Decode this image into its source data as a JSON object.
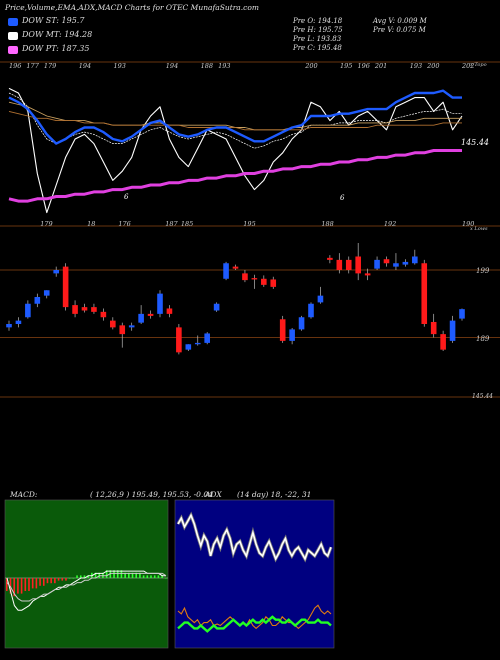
{
  "header": {
    "title": "Price,Volume,EMA,ADX,MACD Charts for OTEC MunafaSutra.com",
    "stats_left": [
      "Pre   O: 194.18",
      "Pre   H: 195.75",
      "Pre   L: 193.83",
      "Pre   C: 195.48"
    ],
    "stats_right": [
      "Avg V: 0.009 M",
      "Pre   V: 0.075 M"
    ]
  },
  "legend": [
    {
      "label": "DOW ST: 195.7",
      "color": "#1e5bff"
    },
    {
      "label": "DOW MT: 194.28",
      "color": "#ffffff"
    },
    {
      "label": "DOW PT: 187.35",
      "color": "#ff66ff"
    }
  ],
  "colors": {
    "up": "#1e5bff",
    "down": "#ff1a1a",
    "st": "#1e5bff",
    "mt": "#ffffff",
    "pt": "#e040e0",
    "grid": "#8b4513",
    "macd_bg": "#0a5a0a",
    "adx_bg": "#000080"
  },
  "chart_data": [
    {
      "type": "line",
      "panel": "price-ema",
      "corner_label": "x Topo",
      "right_value": "145.44",
      "top_labels": [
        "196",
        "177",
        "179",
        "",
        "194",
        "",
        "193",
        "",
        "",
        "194",
        "",
        "188",
        "193",
        "",
        "",
        "",
        "",
        "200",
        "",
        "195",
        "196",
        "201",
        "",
        "193",
        "200",
        "",
        "202"
      ],
      "bottom_labels": [
        "",
        "",
        "179",
        "",
        "",
        "18",
        "",
        "176",
        "",
        "",
        "187",
        "185",
        "",
        "",
        "",
        "195",
        "",
        "",
        "",
        "",
        "188",
        "",
        "",
        "",
        "192",
        "",
        "",
        "",
        "",
        "190"
      ],
      "annotations": [
        "6",
        "6"
      ],
      "series": [
        {
          "values": [
            8,
            10,
            18,
            45,
            62,
            50,
            38,
            30,
            28,
            32,
            40,
            48,
            44,
            38,
            26,
            20,
            16,
            30,
            38,
            42,
            34,
            26,
            28,
            30,
            38,
            46,
            52,
            48,
            40,
            36,
            30,
            26,
            14,
            16,
            22,
            18,
            24,
            20,
            18,
            22,
            26,
            16,
            14,
            12,
            12,
            18,
            14,
            26,
            20
          ]
        },
        {
          "values": [
            10,
            12,
            16,
            24,
            30,
            32,
            30,
            28,
            27,
            28,
            30,
            32,
            32,
            30,
            28,
            26,
            25,
            27,
            29,
            30,
            29,
            28,
            27,
            28,
            30,
            32,
            34,
            33,
            31,
            30,
            28,
            27,
            24,
            24,
            24,
            23,
            23,
            22,
            22,
            22,
            23,
            21,
            20,
            19,
            18,
            18,
            17,
            19,
            19
          ]
        },
        {
          "values": [
            14,
            15,
            16,
            18,
            20,
            21,
            22,
            22,
            22,
            23,
            23,
            24,
            24,
            24,
            24,
            23,
            23,
            24,
            24,
            24,
            24,
            24,
            24,
            24,
            25,
            25,
            26,
            26,
            26,
            26,
            25,
            25,
            24,
            24,
            24,
            24,
            24,
            23,
            23,
            23,
            23,
            22,
            22,
            22,
            21,
            21,
            21,
            21,
            21
          ]
        },
        {
          "values": [
            18,
            19,
            20,
            21,
            21,
            22,
            22,
            22,
            23,
            23,
            23,
            24,
            24,
            24,
            24,
            24,
            24,
            24,
            24,
            25,
            25,
            25,
            25,
            25,
            25,
            26,
            26,
            26,
            26,
            26,
            26,
            26,
            25,
            25,
            25,
            25,
            25,
            25,
            25,
            24,
            24,
            24,
            24,
            24,
            24,
            24,
            23,
            23,
            23
          ]
        },
        {
          "values": [
            56,
            57,
            57,
            56,
            56,
            55,
            55,
            54,
            54,
            53,
            53,
            52,
            52,
            51,
            51,
            50,
            50,
            49,
            49,
            48,
            48,
            47,
            47,
            46,
            46,
            45,
            45,
            44,
            44,
            43,
            43,
            42,
            42,
            41,
            41,
            40,
            40,
            39,
            39,
            38,
            38,
            37,
            37,
            36,
            36,
            35,
            35,
            35,
            35
          ]
        },
        {
          "name": "DOW ST",
          "values": [
            12,
            14,
            17,
            22,
            28,
            32,
            30,
            27,
            25,
            25,
            27,
            30,
            31,
            29,
            26,
            23,
            22,
            25,
            28,
            29,
            28,
            26,
            25,
            25,
            27,
            29,
            31,
            31,
            29,
            27,
            25,
            24,
            20,
            20,
            20,
            19,
            19,
            18,
            17,
            17,
            17,
            14,
            12,
            10,
            10,
            10,
            9,
            12,
            12
          ]
        }
      ]
    },
    {
      "type": "candlestick",
      "panel": "price",
      "corner_label": "x Lows",
      "price_labels": [
        "199",
        "189",
        "145.44"
      ],
      "candles": [
        {
          "o": 190.5,
          "h": 191.5,
          "c": 191,
          "l": 190
        },
        {
          "o": 191,
          "h": 192,
          "c": 191.5,
          "l": 190.5
        },
        {
          "o": 192,
          "h": 194.5,
          "c": 194,
          "l": 191.8
        },
        {
          "o": 194,
          "h": 195.5,
          "c": 195,
          "l": 193.5
        },
        {
          "o": 195.2,
          "h": 196,
          "c": 196,
          "l": 194.8
        },
        {
          "o": 198.5,
          "h": 199.5,
          "c": 199,
          "l": 198
        },
        {
          "o": 199.5,
          "h": 200,
          "c": 193.5,
          "l": 193
        },
        {
          "o": 193.8,
          "h": 194.5,
          "c": 192.5,
          "l": 192
        },
        {
          "o": 193.5,
          "h": 194,
          "c": 193,
          "l": 192.7
        },
        {
          "o": 193.5,
          "h": 194,
          "c": 192.8,
          "l": 192.5
        },
        {
          "o": 192.8,
          "h": 193.3,
          "c": 192,
          "l": 191.5
        },
        {
          "o": 191.5,
          "h": 192,
          "c": 190.5,
          "l": 190.2
        },
        {
          "o": 190.8,
          "h": 191.2,
          "c": 189.5,
          "l": 187.5
        },
        {
          "o": 190.5,
          "h": 191.2,
          "c": 190.8,
          "l": 190
        },
        {
          "o": 191.2,
          "h": 193.8,
          "c": 192.5,
          "l": 191
        },
        {
          "o": 192.5,
          "h": 193,
          "c": 192.2,
          "l": 191.8
        },
        {
          "o": 192.5,
          "h": 196,
          "c": 195.5,
          "l": 192
        },
        {
          "o": 193.3,
          "h": 193.8,
          "c": 192.5,
          "l": 192
        },
        {
          "o": 190.5,
          "h": 191,
          "c": 186.8,
          "l": 186.5
        },
        {
          "o": 187.2,
          "h": 188,
          "c": 188,
          "l": 187
        },
        {
          "o": 188,
          "h": 189.3,
          "c": 188.2,
          "l": 187.8
        },
        {
          "o": 188.2,
          "h": 189.8,
          "c": 189.6,
          "l": 188
        },
        {
          "o": 193,
          "h": 194.2,
          "c": 194,
          "l": 192.8
        },
        {
          "o": 197.7,
          "h": 200.2,
          "c": 200,
          "l": 197.5
        },
        {
          "o": 199.5,
          "h": 199.8,
          "c": 199.2,
          "l": 199
        },
        {
          "o": 198.5,
          "h": 199,
          "c": 197.5,
          "l": 197.2
        },
        {
          "o": 197.8,
          "h": 198.3,
          "c": 197.6,
          "l": 196.2
        },
        {
          "o": 197.7,
          "h": 198.2,
          "c": 196.8,
          "l": 196.5
        },
        {
          "o": 197.6,
          "h": 198,
          "c": 196.5,
          "l": 196.2
        },
        {
          "o": 191.7,
          "h": 192.2,
          "c": 188.5,
          "l": 188.2
        },
        {
          "o": 188.5,
          "h": 190.4,
          "c": 190.2,
          "l": 188
        },
        {
          "o": 190.2,
          "h": 192.2,
          "c": 192,
          "l": 190
        },
        {
          "o": 192,
          "h": 194.2,
          "c": 194,
          "l": 191.8
        },
        {
          "o": 194.2,
          "h": 196.5,
          "c": 195.2,
          "l": 194
        },
        {
          "o": 200.8,
          "h": 201.2,
          "c": 200.5,
          "l": 200
        },
        {
          "o": 200.5,
          "h": 201.5,
          "c": 199,
          "l": 198.5
        },
        {
          "o": 200.5,
          "h": 201,
          "c": 199,
          "l": 198.5
        },
        {
          "o": 201,
          "h": 203,
          "c": 198.5,
          "l": 197.5
        },
        {
          "o": 198.5,
          "h": 199.2,
          "c": 198.2,
          "l": 197.5
        },
        {
          "o": 199.2,
          "h": 201,
          "c": 200.5,
          "l": 199
        },
        {
          "o": 200.6,
          "h": 201,
          "c": 200,
          "l": 199.5
        },
        {
          "o": 199.5,
          "h": 201.5,
          "c": 200,
          "l": 199
        },
        {
          "o": 199.8,
          "h": 200.6,
          "c": 200.2,
          "l": 199.5
        },
        {
          "o": 200,
          "h": 202,
          "c": 201,
          "l": 199.8
        },
        {
          "o": 200,
          "h": 200.5,
          "c": 191,
          "l": 190.6
        },
        {
          "o": 191.3,
          "h": 192.5,
          "c": 189.5,
          "l": 189
        },
        {
          "o": 189.5,
          "h": 190,
          "c": 187.2,
          "l": 187
        },
        {
          "o": 188.5,
          "h": 192.2,
          "c": 191.5,
          "l": 188.2
        },
        {
          "o": 191.8,
          "h": 193.3,
          "c": 193.2,
          "l": 191.5
        }
      ]
    },
    {
      "type": "bar",
      "panel": "macd",
      "title": "MACD:",
      "params": "( 12,26,9 ) 195.49, 195.53, -0.04",
      "values": [
        -5,
        -6,
        -7,
        -6,
        -6,
        -5,
        -5,
        -4,
        -4,
        -3,
        -3,
        -2,
        -2,
        -2,
        -1,
        -1,
        -1,
        0,
        0,
        1,
        1,
        1,
        1,
        2,
        2,
        2,
        2,
        3,
        3,
        3,
        3,
        3,
        2,
        2,
        2,
        2,
        2,
        1,
        1,
        1,
        1,
        1,
        1,
        0
      ],
      "series": [
        {
          "values": [
            0,
            -6,
            -12,
            -14,
            -14,
            -13,
            -12,
            -10,
            -9,
            -8,
            -8,
            -7,
            -6,
            -5,
            -4,
            -4,
            -3,
            -3,
            -2,
            -1,
            0,
            0,
            1,
            1,
            2,
            2,
            2,
            3,
            3,
            3,
            3,
            3,
            3,
            3,
            3,
            3,
            3,
            3,
            2,
            2,
            2,
            2,
            1,
            1
          ]
        },
        {
          "values": [
            -2,
            -4,
            -7,
            -9,
            -10,
            -10,
            -10,
            -9,
            -9,
            -8,
            -7,
            -7,
            -6,
            -5,
            -5,
            -4,
            -4,
            -3,
            -3,
            -2,
            -2,
            -1,
            -1,
            0,
            0,
            1,
            1,
            1,
            2,
            2,
            2,
            2,
            2,
            2,
            2,
            2,
            2,
            2,
            2,
            2,
            2,
            2,
            2,
            1
          ]
        }
      ]
    },
    {
      "type": "line",
      "panel": "adx",
      "title": "ADX",
      "params": "(14 day) 18, -22, 31",
      "series": [
        {
          "values": [
            80,
            84,
            78,
            82,
            86,
            80,
            72,
            65,
            72,
            68,
            58,
            66,
            70,
            64,
            72,
            76,
            70,
            60,
            66,
            68,
            62,
            58,
            66,
            74,
            66,
            60,
            58,
            64,
            68,
            62,
            56,
            60,
            66,
            70,
            62,
            58,
            62,
            64,
            60,
            56,
            62,
            60,
            58,
            62,
            66,
            60,
            58,
            64
          ]
        },
        {
          "values": [
            20,
            18,
            22,
            16,
            14,
            12,
            14,
            10,
            12,
            12,
            14,
            10,
            11,
            10,
            12,
            14,
            16,
            14,
            12,
            10,
            12,
            10,
            14,
            10,
            8,
            10,
            12,
            16,
            14,
            10,
            10,
            12,
            16,
            14,
            12,
            12,
            10,
            8,
            10,
            12,
            14,
            18,
            22,
            24,
            20,
            18,
            20,
            18
          ]
        },
        {
          "values": [
            8,
            10,
            12,
            12,
            10,
            8,
            8,
            10,
            8,
            6,
            8,
            10,
            8,
            8,
            8,
            10,
            12,
            14,
            12,
            10,
            12,
            10,
            12,
            14,
            12,
            12,
            14,
            12,
            14,
            16,
            14,
            14,
            12,
            12,
            14,
            12,
            10,
            12,
            14,
            14,
            12,
            12,
            12,
            14,
            12,
            12,
            12,
            10
          ]
        }
      ]
    }
  ]
}
